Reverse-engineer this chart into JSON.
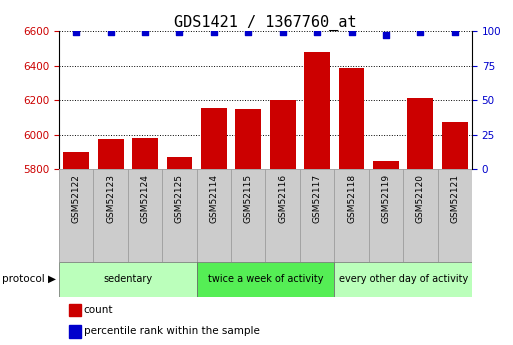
{
  "title": "GDS1421 / 1367760_at",
  "samples": [
    "GSM52122",
    "GSM52123",
    "GSM52124",
    "GSM52125",
    "GSM52114",
    "GSM52115",
    "GSM52116",
    "GSM52117",
    "GSM52118",
    "GSM52119",
    "GSM52120",
    "GSM52121"
  ],
  "counts": [
    5900,
    5975,
    5980,
    5870,
    6155,
    6148,
    6200,
    6480,
    6385,
    5845,
    6210,
    6075
  ],
  "percentile_ranks": [
    99,
    99,
    99,
    99,
    99,
    99,
    99,
    99,
    99,
    97,
    99,
    99
  ],
  "ylim_left": [
    5800,
    6600
  ],
  "ylim_right": [
    0,
    100
  ],
  "yticks_left": [
    5800,
    6000,
    6200,
    6400,
    6600
  ],
  "yticks_right": [
    0,
    25,
    50,
    75,
    100
  ],
  "bar_color": "#cc0000",
  "dot_color": "#0000cc",
  "groups": [
    {
      "label": "sedentary",
      "start": 0,
      "end": 4,
      "color": "#bbffbb"
    },
    {
      "label": "twice a week of activity",
      "start": 4,
      "end": 8,
      "color": "#55ee55"
    },
    {
      "label": "every other day of activity",
      "start": 8,
      "end": 12,
      "color": "#bbffbb"
    }
  ],
  "sample_box_color": "#cccccc",
  "protocol_label": "protocol",
  "legend_count_label": "count",
  "legend_pct_label": "percentile rank within the sample",
  "title_fontsize": 11,
  "tick_fontsize": 7.5,
  "sample_fontsize": 6.5,
  "legend_fontsize": 7.5,
  "proto_fontsize": 7,
  "bar_width": 0.75
}
